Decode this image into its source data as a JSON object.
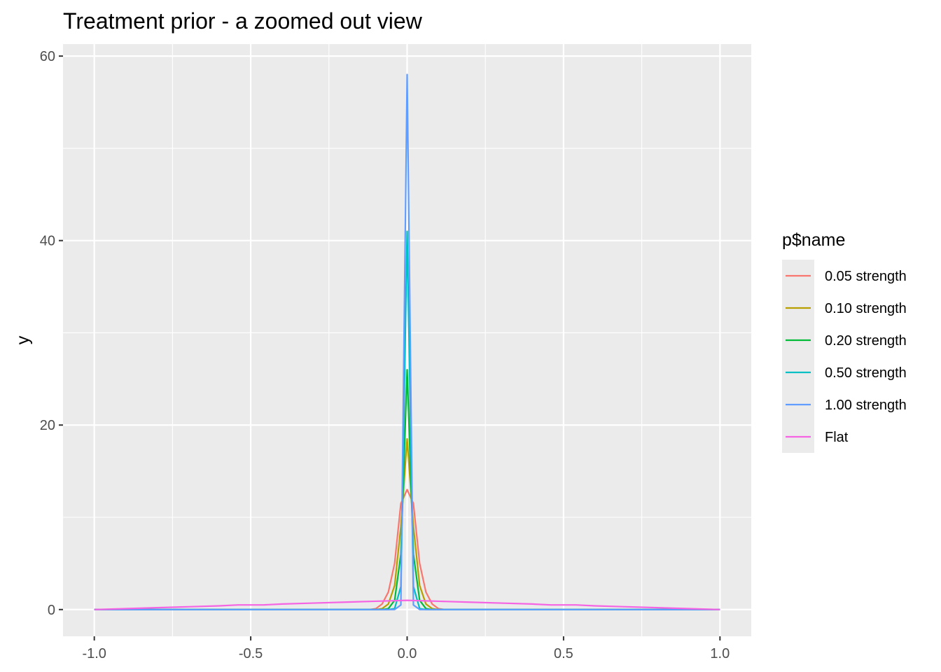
{
  "chart_data": {
    "type": "line",
    "title": "Treatment prior - a zoomed out view",
    "xlabel": "",
    "ylabel": "y",
    "xlim": [
      -1.1,
      1.1
    ],
    "ylim": [
      -2.9,
      61.3
    ],
    "x_ticks": [
      -1.0,
      -0.5,
      0.0,
      0.5,
      1.0
    ],
    "x_tick_labels": [
      "-1.0",
      "-0.5",
      "0.0",
      "0.5",
      "1.0"
    ],
    "y_ticks": [
      0,
      20,
      40,
      60
    ],
    "y_tick_labels": [
      "0",
      "20",
      "40",
      "60"
    ],
    "y_minor_ticks": [
      10,
      30,
      50
    ],
    "x_minor_ticks": [
      -0.75,
      -0.25,
      0.25,
      0.75
    ],
    "grid": true,
    "legend": {
      "title": "p$name",
      "position": "right"
    },
    "series": [
      {
        "name": "0.05 strength",
        "color": "#F8766D",
        "x": [
          -1.0,
          -0.12,
          -0.1,
          -0.08,
          -0.06,
          -0.04,
          -0.02,
          0.0,
          0.02,
          0.04,
          0.06,
          0.08,
          0.1,
          0.12,
          1.0
        ],
        "y": [
          0,
          0,
          0.1,
          0.6,
          1.9,
          5.0,
          11.5,
          13.0,
          11.5,
          5.0,
          1.9,
          0.6,
          0.1,
          0,
          0
        ]
      },
      {
        "name": "0.10 strength",
        "color": "#B79F00",
        "x": [
          -1.0,
          -0.1,
          -0.08,
          -0.06,
          -0.04,
          -0.02,
          0.0,
          0.02,
          0.04,
          0.06,
          0.08,
          0.1,
          1.0
        ],
        "y": [
          0,
          0,
          0.1,
          0.6,
          2.6,
          9.0,
          18.5,
          9.0,
          2.6,
          0.6,
          0.1,
          0,
          0
        ]
      },
      {
        "name": "0.20 strength",
        "color": "#00BA38",
        "x": [
          -1.0,
          -0.08,
          -0.06,
          -0.04,
          -0.02,
          0.0,
          0.02,
          0.04,
          0.06,
          0.08,
          1.0
        ],
        "y": [
          0,
          0,
          0.1,
          1.0,
          6.0,
          26.0,
          6.0,
          1.0,
          0.1,
          0,
          0
        ]
      },
      {
        "name": "0.50 strength",
        "color": "#00BFC4",
        "x": [
          -1.0,
          -0.06,
          -0.04,
          -0.02,
          0.0,
          0.02,
          0.04,
          0.06,
          1.0
        ],
        "y": [
          0,
          0,
          0.1,
          2.5,
          41.0,
          2.5,
          0.1,
          0,
          0
        ]
      },
      {
        "name": "1.00 strength",
        "color": "#619CFF",
        "x": [
          -1.0,
          -0.04,
          -0.02,
          0.0,
          0.02,
          0.04,
          1.0
        ],
        "y": [
          0,
          0,
          0.5,
          58.0,
          0.5,
          0,
          0
        ]
      },
      {
        "name": "Flat",
        "color": "#F564E3",
        "x": [
          -1.0,
          -0.9,
          -0.8,
          -0.7,
          -0.6,
          -0.54,
          -0.46,
          -0.4,
          -0.3,
          -0.2,
          -0.1,
          0.0,
          0.1,
          0.2,
          0.3,
          0.4,
          0.46,
          0.54,
          0.6,
          0.7,
          0.8,
          0.9,
          1.0
        ],
        "y": [
          0.0,
          0.1,
          0.2,
          0.3,
          0.4,
          0.5,
          0.5,
          0.6,
          0.7,
          0.8,
          0.9,
          1.0,
          0.9,
          0.8,
          0.7,
          0.6,
          0.5,
          0.5,
          0.4,
          0.3,
          0.2,
          0.1,
          0.0
        ]
      }
    ]
  }
}
